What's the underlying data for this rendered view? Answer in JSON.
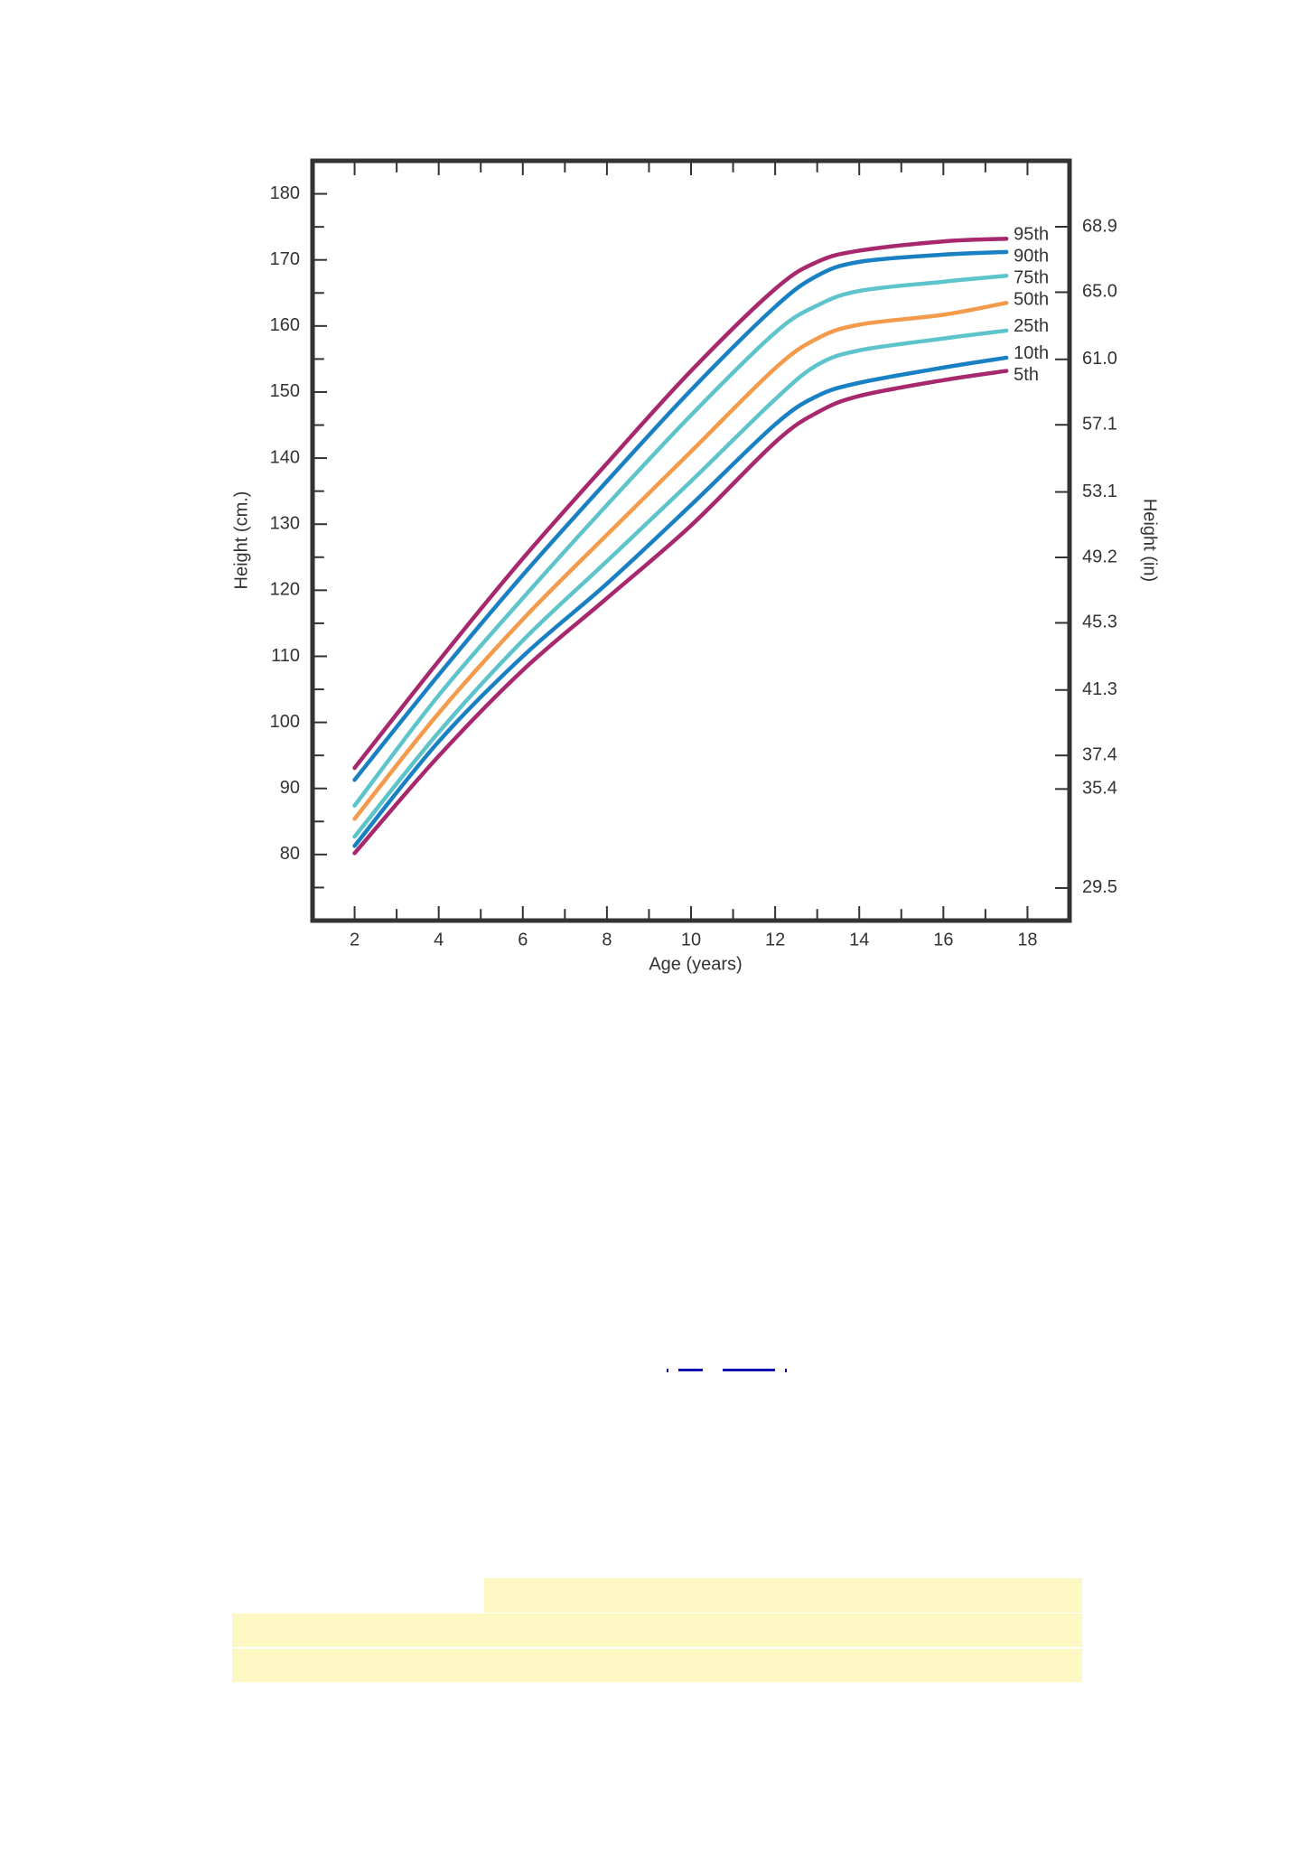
{
  "chart_data": {
    "type": "line",
    "x_label": "Age (years)",
    "y_label": "Height (cm.)",
    "y2_label": "Height (in)",
    "xlim": [
      1,
      19
    ],
    "xticks": [
      2,
      4,
      6,
      8,
      10,
      12,
      14,
      16,
      18
    ],
    "ylim": [
      70,
      185
    ],
    "yticks": [
      80,
      90,
      100,
      110,
      120,
      130,
      140,
      150,
      160,
      170,
      180
    ],
    "y2lim": [
      27.56,
      72.83
    ],
    "y2ticks": [
      68.9,
      {
        "value": 65,
        "label": "65.0"
      },
      {
        "value": 61,
        "label": "61.0"
      },
      57.1,
      53.1,
      49.2,
      45.3,
      41.3,
      37.4,
      35.4,
      29.5
    ],
    "x": [
      2,
      4,
      6,
      8,
      10,
      12,
      13,
      14,
      16,
      17.5
    ],
    "series": [
      {
        "name": "95th",
        "color": "#a8286e",
        "values": [
          93.1,
          109.3,
          124.8,
          139.2,
          153.2,
          165.6,
          169.7,
          171.4,
          172.8,
          173.2
        ]
      },
      {
        "name": "90th",
        "color": "#1a80c4",
        "values": [
          91.3,
          107.2,
          122.3,
          136.5,
          150.3,
          162.9,
          167.6,
          169.7,
          170.8,
          171.2
        ]
      },
      {
        "name": "75th",
        "color": "#5ec4cc",
        "values": [
          87.4,
          104.1,
          118.8,
          132.9,
          146.5,
          159.0,
          163.1,
          165.3,
          166.7,
          167.6
        ]
      },
      {
        "name": "50th",
        "color": "#f39a4b",
        "values": [
          85.4,
          101.4,
          115.6,
          128.4,
          141.0,
          153.6,
          158.1,
          160.2,
          161.7,
          163.5
        ]
      },
      {
        "name": "25th",
        "color": "#5ec4cc",
        "values": [
          82.7,
          98.5,
          112.4,
          124.4,
          136.5,
          148.9,
          154.1,
          156.3,
          158.1,
          159.3
        ]
      },
      {
        "name": "10th",
        "color": "#1a80c4",
        "values": [
          81.3,
          97.1,
          110.0,
          121.0,
          132.9,
          145.1,
          149.4,
          151.4,
          153.7,
          155.2
        ]
      },
      {
        "name": "5th",
        "color": "#a8286e",
        "values": [
          80.2,
          94.9,
          107.9,
          118.8,
          129.8,
          142.4,
          146.9,
          149.4,
          151.8,
          153.2
        ]
      }
    ]
  }
}
